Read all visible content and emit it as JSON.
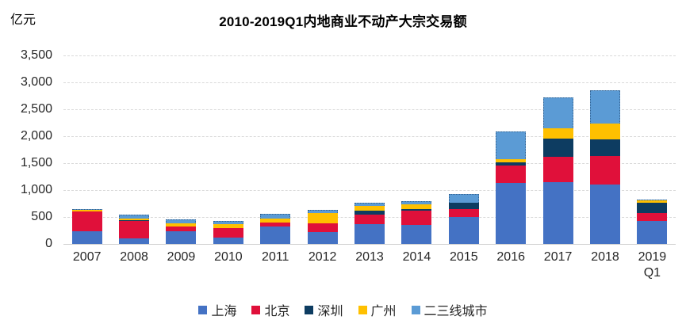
{
  "header": {
    "title": "2010-2019Q1内地商业不动产大宗交易额",
    "unit_label": "亿元"
  },
  "chart_data": {
    "type": "bar",
    "stacked": true,
    "title": "2010-2019Q1内地商业不动产大宗交易额",
    "ylabel": "亿元",
    "xlabel": "",
    "ylim": [
      0,
      3500
    ],
    "ytick_step": 500,
    "grid": "horizontal-dashed",
    "legend_position": "bottom",
    "categories": [
      "2007",
      "2008",
      "2009",
      "2010",
      "2011",
      "2012",
      "2013",
      "2014",
      "2015",
      "2016",
      "2017",
      "2018",
      "2019\nQ1"
    ],
    "series": [
      {
        "name": "上海",
        "color": "#4472C4",
        "values": [
          240,
          100,
          235,
          120,
          330,
          220,
          375,
          350,
          500,
          1130,
          1150,
          1110,
          425
        ]
      },
      {
        "name": "北京",
        "color": "#E0103A",
        "values": [
          360,
          320,
          85,
          180,
          70,
          170,
          175,
          270,
          150,
          320,
          465,
          530,
          150
        ]
      },
      {
        "name": "深圳",
        "color": "#0D3C61",
        "values": [
          10,
          20,
          0,
          0,
          0,
          0,
          75,
          30,
          110,
          70,
          345,
          305,
          195
        ]
      },
      {
        "name": "广州",
        "color": "#FFC000",
        "values": [
          20,
          25,
          70,
          70,
          65,
          185,
          75,
          90,
          0,
          55,
          195,
          295,
          35
        ]
      },
      {
        "name": "二三线城市",
        "color": "#5B9BD5",
        "values": [
          20,
          75,
          65,
          60,
          90,
          55,
          70,
          60,
          165,
          510,
          565,
          620,
          10
        ],
        "border": "dotted"
      }
    ],
    "totals": [
      650,
      540,
      455,
      430,
      555,
      630,
      770,
      800,
      925,
      2085,
      2720,
      2860,
      815
    ],
    "gridline_color": "#D9D9D9",
    "text_color": "#262626"
  }
}
